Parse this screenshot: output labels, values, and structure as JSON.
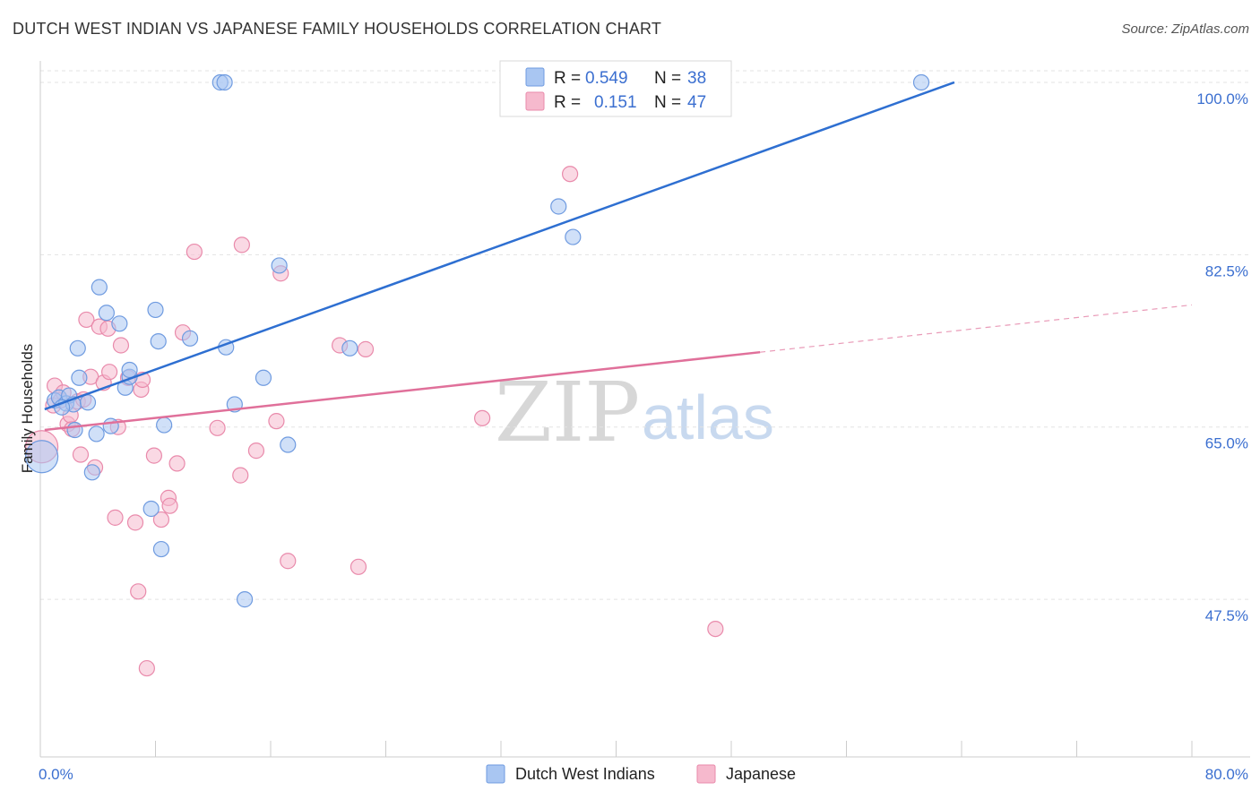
{
  "title": "DUTCH WEST INDIAN VS JAPANESE FAMILY HOUSEHOLDS CORRELATION CHART",
  "source": "Source: ZipAtlas.com",
  "colors": {
    "blue_fill": "#a9c6f2",
    "blue_stroke": "#6f9be0",
    "blue_line": "#2e6fd1",
    "pink_fill": "#f6b9cd",
    "pink_stroke": "#e98aab",
    "pink_line": "#e0709a",
    "grid": "#e3e3e3",
    "axis_label": "#3b6fd0"
  },
  "legend": {
    "r_label": "R =",
    "n_label": "N =",
    "series": [
      {
        "r": "0.549",
        "n": "38"
      },
      {
        "r": "0.151",
        "n": "47"
      }
    ]
  },
  "watermark": {
    "zip": "ZIP",
    "atlas": "atlas"
  },
  "chart_data": {
    "type": "scatter",
    "xlabel": "",
    "ylabel": "Family Households",
    "xlim": [
      0,
      80
    ],
    "ylim": [
      31.5,
      102
    ],
    "x_tick_labels": [
      "0.0%",
      "80.0%"
    ],
    "y_ticks": [
      47.5,
      65.0,
      82.5,
      100.0
    ],
    "y_tick_labels": [
      "47.5%",
      "65.0%",
      "82.5%",
      "100.0%"
    ],
    "grid": true,
    "series": [
      {
        "name": "Dutch West Indians",
        "trend": {
          "x": [
            0.3,
            63.5
          ],
          "y": [
            66.8,
            100.0
          ]
        },
        "points": [
          {
            "x": 0.1,
            "y": 62.0,
            "big": true
          },
          {
            "x": 1.0,
            "y": 67.7
          },
          {
            "x": 1.3,
            "y": 68.0
          },
          {
            "x": 1.8,
            "y": 67.4
          },
          {
            "x": 2.0,
            "y": 68.2
          },
          {
            "x": 2.4,
            "y": 64.7
          },
          {
            "x": 2.3,
            "y": 67.3
          },
          {
            "x": 2.6,
            "y": 73.0
          },
          {
            "x": 2.7,
            "y": 70.0
          },
          {
            "x": 3.3,
            "y": 67.5
          },
          {
            "x": 3.6,
            "y": 60.4
          },
          {
            "x": 3.9,
            "y": 64.3
          },
          {
            "x": 4.1,
            "y": 79.2
          },
          {
            "x": 4.6,
            "y": 76.6
          },
          {
            "x": 4.9,
            "y": 65.1
          },
          {
            "x": 5.5,
            "y": 75.5
          },
          {
            "x": 5.9,
            "y": 69.0
          },
          {
            "x": 6.2,
            "y": 70.1
          },
          {
            "x": 6.2,
            "y": 70.8
          },
          {
            "x": 7.7,
            "y": 56.7
          },
          {
            "x": 8.0,
            "y": 76.9
          },
          {
            "x": 8.2,
            "y": 73.7
          },
          {
            "x": 8.4,
            "y": 52.6
          },
          {
            "x": 8.6,
            "y": 65.2
          },
          {
            "x": 10.4,
            "y": 74.0
          },
          {
            "x": 12.5,
            "y": 100.0
          },
          {
            "x": 12.8,
            "y": 100.0
          },
          {
            "x": 12.9,
            "y": 73.1
          },
          {
            "x": 13.5,
            "y": 67.3
          },
          {
            "x": 14.2,
            "y": 47.5
          },
          {
            "x": 15.5,
            "y": 70.0
          },
          {
            "x": 16.6,
            "y": 81.4
          },
          {
            "x": 17.2,
            "y": 63.2
          },
          {
            "x": 21.5,
            "y": 73.0
          },
          {
            "x": 36.0,
            "y": 87.4
          },
          {
            "x": 37.0,
            "y": 84.3
          },
          {
            "x": 61.2,
            "y": 100.0
          },
          {
            "x": 1.5,
            "y": 67.0
          }
        ]
      },
      {
        "name": "Japanese",
        "trend": {
          "x": [
            0.3,
            50.0
          ],
          "y": [
            64.7,
            72.6
          ]
        },
        "trend_dashed": {
          "x": [
            50.0,
            80.0
          ],
          "y": [
            72.6,
            77.4
          ]
        },
        "points": [
          {
            "x": 0.1,
            "y": 63.0,
            "big": true
          },
          {
            "x": 0.9,
            "y": 67.2
          },
          {
            "x": 1.0,
            "y": 69.2
          },
          {
            "x": 1.4,
            "y": 67.7
          },
          {
            "x": 1.6,
            "y": 68.5
          },
          {
            "x": 1.9,
            "y": 65.3
          },
          {
            "x": 2.2,
            "y": 64.8
          },
          {
            "x": 2.6,
            "y": 67.6
          },
          {
            "x": 2.8,
            "y": 62.2
          },
          {
            "x": 3.2,
            "y": 75.9
          },
          {
            "x": 3.5,
            "y": 70.1
          },
          {
            "x": 3.8,
            "y": 60.9
          },
          {
            "x": 4.1,
            "y": 75.2
          },
          {
            "x": 4.4,
            "y": 69.5
          },
          {
            "x": 4.7,
            "y": 75.0
          },
          {
            "x": 4.8,
            "y": 70.6
          },
          {
            "x": 5.2,
            "y": 55.8
          },
          {
            "x": 5.4,
            "y": 65.0
          },
          {
            "x": 5.6,
            "y": 73.3
          },
          {
            "x": 6.1,
            "y": 70.0
          },
          {
            "x": 6.6,
            "y": 55.3
          },
          {
            "x": 6.8,
            "y": 48.3
          },
          {
            "x": 7.0,
            "y": 68.8
          },
          {
            "x": 7.4,
            "y": 40.5
          },
          {
            "x": 7.9,
            "y": 62.1
          },
          {
            "x": 8.4,
            "y": 55.6
          },
          {
            "x": 8.9,
            "y": 57.8
          },
          {
            "x": 9.0,
            "y": 57.0
          },
          {
            "x": 9.5,
            "y": 61.3
          },
          {
            "x": 9.9,
            "y": 74.6
          },
          {
            "x": 10.7,
            "y": 82.8
          },
          {
            "x": 12.3,
            "y": 64.9
          },
          {
            "x": 13.9,
            "y": 60.1
          },
          {
            "x": 14.0,
            "y": 83.5
          },
          {
            "x": 15.0,
            "y": 62.6
          },
          {
            "x": 16.4,
            "y": 65.6
          },
          {
            "x": 16.7,
            "y": 80.6
          },
          {
            "x": 17.2,
            "y": 51.4
          },
          {
            "x": 20.8,
            "y": 73.3
          },
          {
            "x": 22.6,
            "y": 72.9
          },
          {
            "x": 22.1,
            "y": 50.8
          },
          {
            "x": 30.7,
            "y": 65.9
          },
          {
            "x": 36.8,
            "y": 90.7
          },
          {
            "x": 46.9,
            "y": 44.5
          },
          {
            "x": 3.0,
            "y": 67.8
          },
          {
            "x": 2.1,
            "y": 66.2
          },
          {
            "x": 7.1,
            "y": 69.8
          }
        ]
      }
    ]
  },
  "bottom_legend": [
    "Dutch West Indians",
    "Japanese"
  ]
}
